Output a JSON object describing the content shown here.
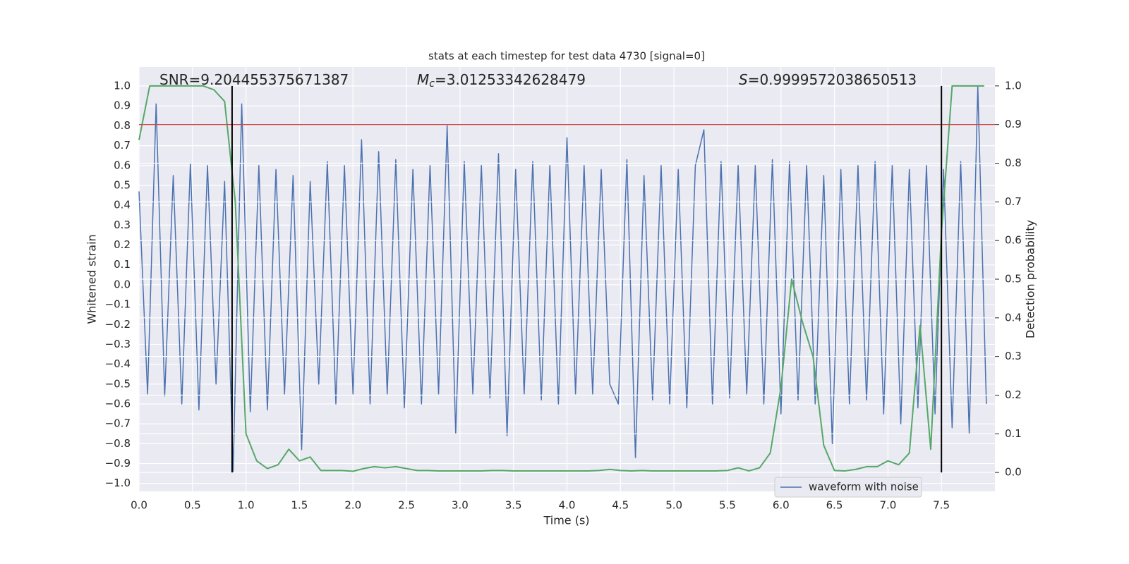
{
  "chart_data": {
    "type": "line",
    "title": "stats at each timestep for test data 4730 [signal=0]",
    "xlabel": "Time (s)",
    "ylabel": "Whitened strain",
    "y2label": "Detection probability",
    "annotations": [
      {
        "text": "SNR=9.204455375671387"
      },
      {
        "symbol": "M",
        "sub": "c",
        "text": "=3.01253342628479"
      },
      {
        "symbol": "S",
        "text": "=0.9999572038650513"
      }
    ],
    "xlim": [
      0,
      8
    ],
    "ylim": [
      -1.04,
      1.096
    ],
    "y2lim": [
      -0.049,
      1.049
    ],
    "grid": true,
    "legend": "lower right",
    "xticks": [
      {
        "value": 0,
        "label": "0.0"
      },
      {
        "value": 0.5,
        "label": "0.5"
      },
      {
        "value": 1,
        "label": "1.0"
      },
      {
        "value": 1.5,
        "label": "1.5"
      },
      {
        "value": 2,
        "label": "2.0"
      },
      {
        "value": 2.5,
        "label": "2.5"
      },
      {
        "value": 3,
        "label": "3.0"
      },
      {
        "value": 3.5,
        "label": "3.5"
      },
      {
        "value": 4,
        "label": "4.0"
      },
      {
        "value": 4.5,
        "label": "4.5"
      },
      {
        "value": 5,
        "label": "5.0"
      },
      {
        "value": 5.5,
        "label": "5.5"
      },
      {
        "value": 6,
        "label": "6.0"
      },
      {
        "value": 6.5,
        "label": "6.5"
      },
      {
        "value": 7,
        "label": "7.0"
      },
      {
        "value": 7.5,
        "label": "7.5"
      }
    ],
    "yticks": [
      {
        "value": -1,
        "label": "−1.0"
      },
      {
        "value": -0.9,
        "label": "−0.9"
      },
      {
        "value": -0.8,
        "label": "−0.8"
      },
      {
        "value": -0.7,
        "label": "−0.7"
      },
      {
        "value": -0.6,
        "label": "−0.6"
      },
      {
        "value": -0.5,
        "label": "−0.5"
      },
      {
        "value": -0.4,
        "label": "−0.4"
      },
      {
        "value": -0.3,
        "label": "−0.3"
      },
      {
        "value": -0.2,
        "label": "−0.2"
      },
      {
        "value": -0.1,
        "label": "−0.1"
      },
      {
        "value": 0,
        "label": "0.0"
      },
      {
        "value": 0.1,
        "label": "0.1"
      },
      {
        "value": 0.2,
        "label": "0.2"
      },
      {
        "value": 0.3,
        "label": "0.3"
      },
      {
        "value": 0.4,
        "label": "0.4"
      },
      {
        "value": 0.5,
        "label": "0.5"
      },
      {
        "value": 0.6,
        "label": "0.6"
      },
      {
        "value": 0.7,
        "label": "0.7"
      },
      {
        "value": 0.8,
        "label": "0.8"
      },
      {
        "value": 0.9,
        "label": "0.9"
      },
      {
        "value": 1,
        "label": "1.0"
      }
    ],
    "y2ticks": [
      {
        "value": 0,
        "label": "0.0"
      },
      {
        "value": 0.1,
        "label": "0.1"
      },
      {
        "value": 0.2,
        "label": "0.2"
      },
      {
        "value": 0.3,
        "label": "0.3"
      },
      {
        "value": 0.4,
        "label": "0.4"
      },
      {
        "value": 0.5,
        "label": "0.5"
      },
      {
        "value": 0.6,
        "label": "0.6"
      },
      {
        "value": 0.7,
        "label": "0.7"
      },
      {
        "value": 0.8,
        "label": "0.8"
      },
      {
        "value": 0.9,
        "label": "0.9"
      },
      {
        "value": 1,
        "label": "1.0"
      }
    ],
    "threshold": 0.9,
    "threshold_color": "#c44e52",
    "vlines": [
      0.87,
      7.5
    ],
    "vline_color": "#000000",
    "series": [
      {
        "name": "waveform with noise",
        "color": "#4c72b0",
        "x": [
          0,
          0.08,
          0.16,
          0.24,
          0.32,
          0.4,
          0.48,
          0.56,
          0.64,
          0.72,
          0.8,
          0.88,
          0.96,
          1.04,
          1.12,
          1.2,
          1.28,
          1.36,
          1.44,
          1.52,
          1.6,
          1.68,
          1.76,
          1.84,
          1.92,
          2,
          2.08,
          2.16,
          2.24,
          2.32,
          2.4,
          2.48,
          2.56,
          2.64,
          2.72,
          2.8,
          2.88,
          2.96,
          3.04,
          3.12,
          3.2,
          3.28,
          3.36,
          3.44,
          3.52,
          3.6,
          3.68,
          3.76,
          3.84,
          3.92,
          4,
          4.08,
          4.16,
          4.24,
          4.32,
          4.4,
          4.48,
          4.56,
          4.64,
          4.72,
          4.8,
          4.88,
          4.96,
          5.04,
          5.12,
          5.2,
          5.28,
          5.36,
          5.44,
          5.52,
          5.6,
          5.68,
          5.76,
          5.84,
          5.92,
          6,
          6.08,
          6.16,
          6.24,
          6.32,
          6.4,
          6.48,
          6.56,
          6.64,
          6.72,
          6.8,
          6.88,
          6.96,
          7.04,
          7.12,
          7.2,
          7.28,
          7.36,
          7.44,
          7.52,
          7.6,
          7.68,
          7.76,
          7.84,
          7.92
        ],
        "values": [
          0.47,
          -0.55,
          0.91,
          -0.56,
          0.55,
          -0.6,
          0.61,
          -0.63,
          0.6,
          -0.5,
          0.52,
          -0.94,
          0.91,
          -0.64,
          0.6,
          -0.63,
          0.58,
          -0.55,
          0.55,
          -0.83,
          0.52,
          -0.5,
          0.62,
          -0.6,
          0.6,
          -0.55,
          0.73,
          -0.6,
          0.67,
          -0.55,
          0.63,
          -0.62,
          0.58,
          -0.6,
          0.6,
          -0.55,
          0.8,
          -0.75,
          0.62,
          -0.55,
          0.6,
          -0.57,
          0.66,
          -0.76,
          0.58,
          -0.55,
          0.62,
          -0.58,
          0.6,
          -0.6,
          0.74,
          -0.55,
          0.6,
          -0.55,
          0.58,
          -0.5,
          -0.6,
          0.63,
          -0.87,
          0.55,
          -0.58,
          0.6,
          -0.6,
          0.58,
          -0.62,
          0.6,
          0.78,
          -0.6,
          0.62,
          -0.57,
          0.6,
          -0.55,
          0.6,
          -0.6,
          0.63,
          -0.65,
          0.62,
          -0.58,
          0.6,
          -0.6,
          0.55,
          -0.8,
          0.58,
          -0.6,
          0.6,
          -0.58,
          0.62,
          -0.65,
          0.6,
          -0.7,
          0.58,
          -0.62,
          0.6,
          -0.65,
          0.58,
          -0.72,
          0.62,
          -0.75,
          1.0,
          -0.6
        ]
      },
      {
        "color": "#55a868",
        "axis": "y2",
        "x": [
          0,
          0.1,
          0.2,
          0.3,
          0.4,
          0.5,
          0.6,
          0.7,
          0.8,
          0.9,
          1,
          1.1,
          1.2,
          1.3,
          1.4,
          1.5,
          1.6,
          1.7,
          1.8,
          1.9,
          2,
          2.1,
          2.2,
          2.3,
          2.4,
          2.5,
          2.6,
          2.7,
          2.8,
          2.9,
          3,
          3.1,
          3.2,
          3.3,
          3.4,
          3.5,
          3.6,
          3.7,
          3.8,
          3.9,
          4,
          4.1,
          4.2,
          4.3,
          4.4,
          4.5,
          4.6,
          4.7,
          4.8,
          4.9,
          5,
          5.1,
          5.2,
          5.3,
          5.4,
          5.5,
          5.6,
          5.7,
          5.8,
          5.9,
          6,
          6.1,
          6.2,
          6.3,
          6.4,
          6.5,
          6.6,
          6.7,
          6.8,
          6.9,
          7,
          7.1,
          7.2,
          7.3,
          7.4,
          7.5,
          7.6,
          7.7,
          7.8,
          7.9
        ],
        "values": [
          0.86,
          1.0,
          1.0,
          1.0,
          1.0,
          1.0,
          1.0,
          0.99,
          0.96,
          0.7,
          0.1,
          0.03,
          0.01,
          0.02,
          0.06,
          0.03,
          0.04,
          0.005,
          0.005,
          0.005,
          0.003,
          0.01,
          0.015,
          0.012,
          0.015,
          0.01,
          0.005,
          0.005,
          0.004,
          0.004,
          0.004,
          0.004,
          0.004,
          0.005,
          0.005,
          0.004,
          0.004,
          0.004,
          0.004,
          0.004,
          0.004,
          0.004,
          0.004,
          0.005,
          0.008,
          0.005,
          0.004,
          0.005,
          0.004,
          0.004,
          0.004,
          0.004,
          0.004,
          0.004,
          0.004,
          0.005,
          0.012,
          0.004,
          0.012,
          0.05,
          0.22,
          0.5,
          0.39,
          0.3,
          0.07,
          0.005,
          0.004,
          0.008,
          0.015,
          0.015,
          0.03,
          0.02,
          0.05,
          0.38,
          0.06,
          0.62,
          1.0,
          1.0,
          1.0,
          1.0
        ]
      }
    ]
  }
}
